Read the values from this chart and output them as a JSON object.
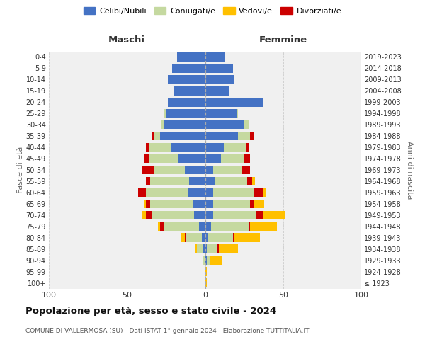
{
  "age_groups": [
    "100+",
    "95-99",
    "90-94",
    "85-89",
    "80-84",
    "75-79",
    "70-74",
    "65-69",
    "60-64",
    "55-59",
    "50-54",
    "45-49",
    "40-44",
    "35-39",
    "30-34",
    "25-29",
    "20-24",
    "15-19",
    "10-14",
    "5-9",
    "0-4"
  ],
  "birth_years": [
    "≤ 1923",
    "1924-1928",
    "1929-1933",
    "1934-1938",
    "1939-1943",
    "1944-1948",
    "1949-1953",
    "1954-1958",
    "1959-1963",
    "1964-1968",
    "1969-1973",
    "1974-1978",
    "1979-1983",
    "1984-1988",
    "1989-1993",
    "1994-1998",
    "1999-2003",
    "2004-2008",
    "2009-2013",
    "2014-2018",
    "2019-2023"
  ],
  "colors": {
    "celibi": "#4472c4",
    "coniugati": "#c5d9a0",
    "vedovi": "#ffc000",
    "divorziati": "#cc0000"
  },
  "maschi": {
    "celibi": [
      0,
      0,
      0,
      1,
      2,
      4,
      7,
      8,
      11,
      10,
      13,
      17,
      22,
      29,
      26,
      25,
      24,
      20,
      24,
      21,
      18
    ],
    "coniugati": [
      0,
      0,
      1,
      4,
      10,
      22,
      27,
      27,
      27,
      25,
      20,
      19,
      14,
      4,
      2,
      1,
      0,
      0,
      0,
      0,
      0
    ],
    "vedovi": [
      0,
      0,
      0,
      1,
      2,
      1,
      2,
      1,
      0,
      0,
      0,
      0,
      0,
      0,
      0,
      0,
      0,
      0,
      0,
      0,
      0
    ],
    "divorziati": [
      0,
      0,
      0,
      0,
      1,
      3,
      4,
      3,
      5,
      3,
      7,
      3,
      2,
      1,
      0,
      0,
      0,
      0,
      0,
      0,
      0
    ]
  },
  "femmine": {
    "celibi": [
      0,
      0,
      1,
      1,
      2,
      4,
      5,
      5,
      5,
      6,
      5,
      10,
      12,
      21,
      25,
      20,
      37,
      15,
      19,
      18,
      13
    ],
    "coniugati": [
      0,
      0,
      2,
      7,
      16,
      24,
      28,
      24,
      26,
      21,
      19,
      15,
      14,
      8,
      3,
      1,
      0,
      0,
      0,
      0,
      0
    ],
    "vedovi": [
      1,
      1,
      8,
      12,
      16,
      17,
      14,
      7,
      2,
      2,
      0,
      0,
      0,
      0,
      0,
      0,
      0,
      0,
      0,
      0,
      0
    ],
    "divorziati": [
      0,
      0,
      0,
      1,
      1,
      1,
      4,
      2,
      6,
      3,
      5,
      4,
      2,
      2,
      0,
      0,
      0,
      0,
      0,
      0,
      0
    ]
  },
  "xlim": 100,
  "title": "Popolazione per età, sesso e stato civile - 2024",
  "subtitle": "COMUNE DI VALLERMOSA (SU) - Dati ISTAT 1° gennaio 2024 - Elaborazione TUTTITALIA.IT",
  "ylabel_left": "Fasce di età",
  "ylabel_right": "Anni di nascita",
  "xlabel_left": "Maschi",
  "xlabel_right": "Femmine",
  "bg_color": "#f0f0f0",
  "grid_color": "#cccccc"
}
